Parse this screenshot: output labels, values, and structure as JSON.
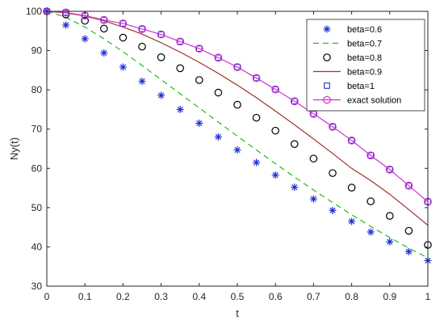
{
  "chart_data": {
    "type": "line",
    "xlabel": "t",
    "ylabel": "Ny(t)",
    "xlim": [
      0,
      1
    ],
    "ylim": [
      30,
      100
    ],
    "xticks": [
      "0",
      "0.1",
      "0.2",
      "0.3",
      "0.4",
      "0.5",
      "0.6",
      "0.7",
      "0.8",
      "0.9",
      "1"
    ],
    "yticks": [
      "30",
      "40",
      "50",
      "60",
      "70",
      "80",
      "90",
      "100"
    ],
    "grid": false,
    "legend_position": "top-right",
    "series": [
      {
        "name": "beta=0.6",
        "style": "star-markers",
        "color": "#1f2fd4",
        "x": [
          0,
          0.05,
          0.1,
          0.15,
          0.2,
          0.25,
          0.3,
          0.35,
          0.4,
          0.45,
          0.5,
          0.55,
          0.6,
          0.65,
          0.7,
          0.75,
          0.8,
          0.85,
          0.9,
          0.95,
          1
        ],
        "y": [
          100,
          96.5,
          93,
          89.4,
          85.8,
          82.2,
          78.6,
          75.0,
          71.5,
          68.0,
          64.7,
          61.5,
          58.3,
          55.2,
          52.2,
          49.3,
          46.5,
          43.8,
          41.3,
          38.8,
          36.5
        ]
      },
      {
        "name": "beta=0.7",
        "style": "dashed-line",
        "color": "#22bb22",
        "x": [
          0,
          0.05,
          0.1,
          0.15,
          0.2,
          0.25,
          0.3,
          0.35,
          0.4,
          0.45,
          0.5,
          0.55,
          0.6,
          0.65,
          0.7,
          0.75,
          0.8,
          0.85,
          0.9,
          0.95,
          1
        ],
        "y": [
          100,
          98.5,
          96.0,
          93.0,
          89.7,
          86.2,
          82.6,
          79.0,
          75.4,
          71.8,
          68.2,
          64.7,
          61.2,
          57.8,
          54.5,
          51.3,
          48.2,
          45.2,
          42.4,
          39.7,
          37.2
        ]
      },
      {
        "name": "beta=0.8",
        "style": "circle-markers",
        "color": "#000000",
        "x": [
          0,
          0.05,
          0.1,
          0.15,
          0.2,
          0.25,
          0.3,
          0.35,
          0.4,
          0.45,
          0.5,
          0.55,
          0.6,
          0.65,
          0.7,
          0.75,
          0.8,
          0.85,
          0.9,
          0.95,
          1
        ],
        "y": [
          100,
          99.2,
          97.6,
          95.6,
          93.3,
          91.0,
          88.3,
          85.5,
          82.5,
          79.3,
          76.2,
          72.9,
          69.6,
          66.2,
          62.5,
          58.8,
          55.1,
          51.6,
          47.9,
          44.1,
          40.5
        ]
      },
      {
        "name": "beta=0.9",
        "style": "solid-line",
        "color": "#a0302a",
        "x": [
          0,
          0.05,
          0.1,
          0.15,
          0.2,
          0.25,
          0.3,
          0.35,
          0.4,
          0.45,
          0.5,
          0.55,
          0.6,
          0.65,
          0.7,
          0.75,
          0.8,
          0.85,
          0.9,
          0.95,
          1
        ],
        "y": [
          100,
          99.6,
          98.8,
          97.6,
          96.0,
          94.2,
          92.0,
          89.6,
          87.0,
          84.2,
          81.2,
          78.0,
          74.6,
          71.1,
          67.5,
          63.8,
          60.0,
          56.9,
          53.4,
          49.5,
          45.5
        ]
      },
      {
        "name": "beta=1",
        "style": "square-markers",
        "color": "#1f2fd4",
        "x": [
          0,
          0.05,
          0.1,
          0.15,
          0.2,
          0.25,
          0.3,
          0.35,
          0.4,
          0.45,
          0.5,
          0.55,
          0.6,
          0.65,
          0.7,
          0.75,
          0.8,
          0.85,
          0.9,
          0.95,
          1
        ],
        "y": [
          100,
          99.7,
          98.9,
          97.8,
          96.9,
          95.5,
          94.1,
          92.3,
          90.5,
          88.2,
          85.8,
          83.0,
          80.1,
          77.1,
          73.9,
          70.6,
          67.1,
          63.3,
          59.7,
          55.6,
          51.5
        ]
      },
      {
        "name": "exact solution",
        "style": "line-circle-markers",
        "color": "#cc33cc",
        "x": [
          0,
          0.05,
          0.1,
          0.15,
          0.2,
          0.25,
          0.3,
          0.35,
          0.4,
          0.45,
          0.5,
          0.55,
          0.6,
          0.65,
          0.7,
          0.75,
          0.8,
          0.85,
          0.9,
          0.95,
          1
        ],
        "y": [
          100,
          99.7,
          98.9,
          97.8,
          96.9,
          95.5,
          94.1,
          92.3,
          90.5,
          88.2,
          85.8,
          83.0,
          80.1,
          77.1,
          73.9,
          70.6,
          67.1,
          63.3,
          59.7,
          55.6,
          51.5
        ]
      }
    ]
  }
}
